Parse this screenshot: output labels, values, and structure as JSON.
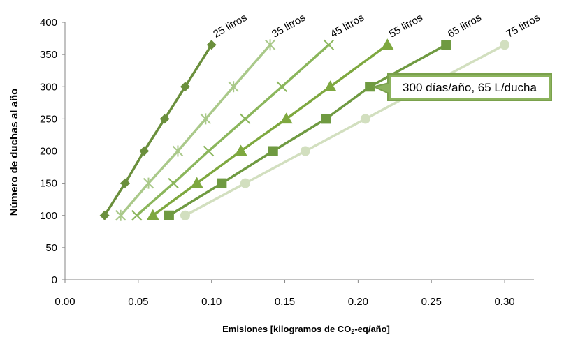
{
  "chart_data": {
    "type": "line",
    "xlabel_main": "Emisiones [kilogramos de CO",
    "xlabel_sub": "2",
    "xlabel_end": "-eq/año]",
    "ylabel": "Número de duchas al año",
    "xlim": [
      0.0,
      0.32
    ],
    "ylim": [
      0,
      400
    ],
    "x_ticks": [
      "0.00",
      "0.05",
      "0.10",
      "0.15",
      "0.20",
      "0.25",
      "0.30"
    ],
    "y_ticks": [
      "0",
      "50",
      "100",
      "150",
      "200",
      "250",
      "300",
      "350",
      "400"
    ],
    "grid": false,
    "legend": "none",
    "series": [
      {
        "name": "25 litros",
        "color": "#6a8f3c",
        "marker": "diamond",
        "points": [
          [
            0.027,
            100
          ],
          [
            0.041,
            150
          ],
          [
            0.054,
            200
          ],
          [
            0.068,
            250
          ],
          [
            0.082,
            300
          ],
          [
            0.1,
            365
          ]
        ]
      },
      {
        "name": "35 litros",
        "color": "#aac98a",
        "marker": "star",
        "points": [
          [
            0.038,
            100
          ],
          [
            0.057,
            150
          ],
          [
            0.077,
            200
          ],
          [
            0.096,
            250
          ],
          [
            0.115,
            300
          ],
          [
            0.14,
            365
          ]
        ]
      },
      {
        "name": "45 litros",
        "color": "#8bb65c",
        "marker": "x",
        "points": [
          [
            0.049,
            100
          ],
          [
            0.074,
            150
          ],
          [
            0.098,
            200
          ],
          [
            0.123,
            250
          ],
          [
            0.148,
            300
          ],
          [
            0.18,
            365
          ]
        ]
      },
      {
        "name": "55 litros",
        "color": "#7ea83f",
        "marker": "triangle",
        "points": [
          [
            0.06,
            100
          ],
          [
            0.09,
            150
          ],
          [
            0.12,
            200
          ],
          [
            0.151,
            250
          ],
          [
            0.181,
            300
          ],
          [
            0.22,
            365
          ]
        ]
      },
      {
        "name": "65 litros",
        "color": "#6f9a41",
        "marker": "square",
        "points": [
          [
            0.071,
            100
          ],
          [
            0.107,
            150
          ],
          [
            0.142,
            200
          ],
          [
            0.178,
            250
          ],
          [
            0.208,
            300
          ],
          [
            0.26,
            365
          ]
        ]
      },
      {
        "name": "75 litros",
        "color": "#d2dfbf",
        "marker": "circle",
        "points": [
          [
            0.082,
            100
          ],
          [
            0.123,
            150
          ],
          [
            0.164,
            200
          ],
          [
            0.205,
            250
          ],
          [
            0.246,
            300
          ],
          [
            0.3,
            365
          ]
        ]
      }
    ],
    "annotation": {
      "text": "300 días/año,  65 L/ducha",
      "fill": "#8cb35d",
      "border": "#7aa14c",
      "target": [
        0.208,
        300
      ]
    }
  }
}
